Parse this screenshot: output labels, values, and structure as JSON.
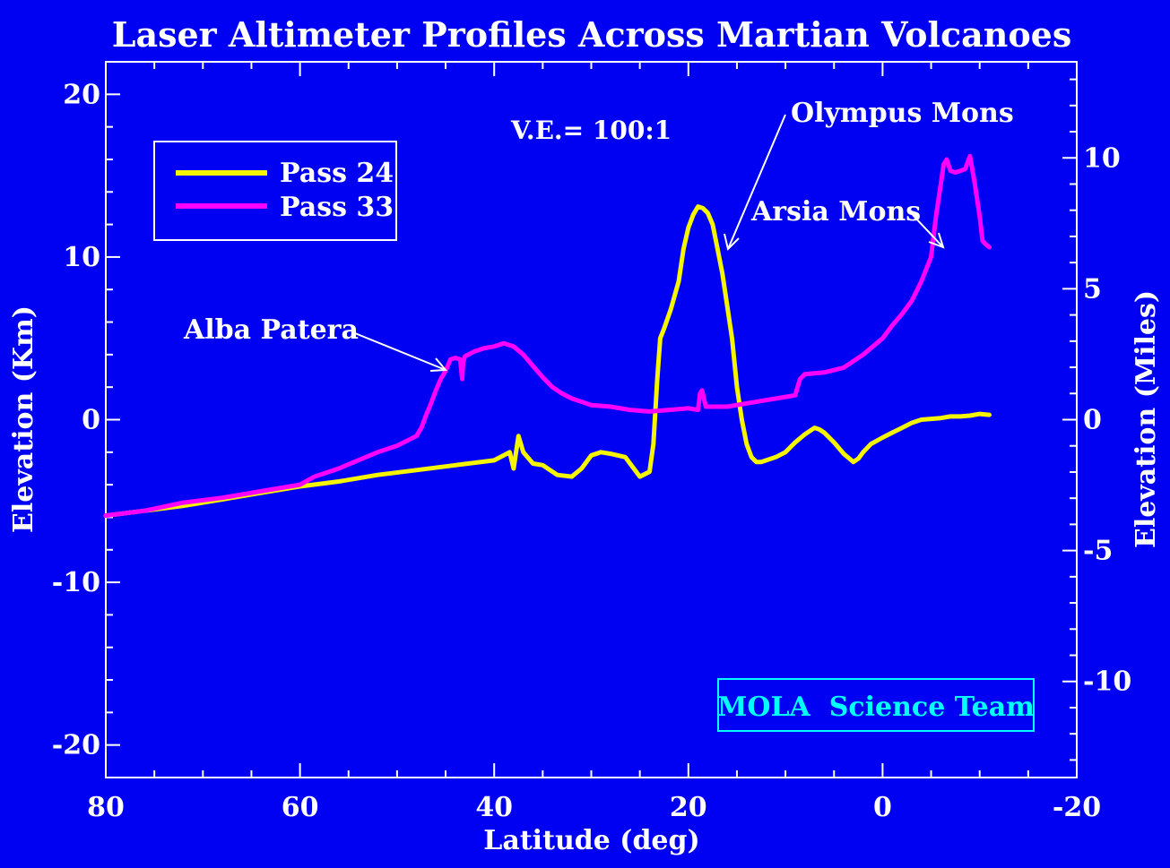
{
  "chart_data": {
    "type": "line",
    "title": "Laser Altimeter Profiles Across Martian Volcanoes",
    "xlabel": "Latitude (deg)",
    "ylabel": "Elevation (Km)",
    "y2label": "Elevation (Miles)",
    "xlim": [
      80,
      -20
    ],
    "ylim": [
      -22,
      22
    ],
    "y2lim": [
      -13.67,
      13.67
    ],
    "xticks": [
      80,
      60,
      40,
      20,
      0,
      -20
    ],
    "yticks": [
      20,
      10,
      0,
      -10,
      -20
    ],
    "y2ticks": [
      10,
      5,
      0,
      -5,
      -10
    ],
    "annotation_ve": "V.E.= 100:1",
    "credit": "MOLA  Science Team",
    "background": "#0000f2",
    "legend_position": "upper-left",
    "series": [
      {
        "name": "Pass 24",
        "color": "#f5f500",
        "x": [
          80,
          76,
          72,
          68,
          64,
          60,
          56,
          52,
          48,
          44,
          40,
          38.4,
          38,
          37.5,
          37,
          36,
          35,
          33.5,
          32,
          31,
          30,
          29,
          28,
          26.5,
          25,
          24,
          23.6,
          23.2,
          22.9,
          22.5,
          21.8,
          21,
          20.5,
          20,
          19.5,
          19,
          18.5,
          18,
          17.5,
          17,
          16.5,
          16,
          15.5,
          15,
          14.5,
          14,
          13.5,
          13,
          12.5,
          11,
          10,
          9,
          8,
          7,
          6.5,
          6,
          5,
          4,
          3,
          2.5,
          2,
          1.2,
          0,
          -1,
          -2,
          -3,
          -4,
          -5,
          -6,
          -7,
          -8,
          -9,
          -10,
          -11
        ],
        "y": [
          -5.9,
          -5.6,
          -5.3,
          -4.9,
          -4.5,
          -4.1,
          -3.8,
          -3.4,
          -3.1,
          -2.8,
          -2.5,
          -2.0,
          -3.0,
          -1.0,
          -2.0,
          -2.7,
          -2.8,
          -3.4,
          -3.5,
          -3.0,
          -2.2,
          -2.0,
          -2.1,
          -2.3,
          -3.5,
          -3.2,
          -1.5,
          2.5,
          5.0,
          5.6,
          6.8,
          8.5,
          10.5,
          11.8,
          12.6,
          13.1,
          13.0,
          12.7,
          12.0,
          10.5,
          9.0,
          7.0,
          5.0,
          2.0,
          0.0,
          -1.5,
          -2.3,
          -2.6,
          -2.6,
          -2.3,
          -2.0,
          -1.4,
          -0.9,
          -0.5,
          -0.6,
          -0.8,
          -1.4,
          -2.1,
          -2.6,
          -2.4,
          -2.0,
          -1.5,
          -1.1,
          -0.8,
          -0.5,
          -0.2,
          0.0,
          0.05,
          0.1,
          0.2,
          0.2,
          0.25,
          0.35,
          0.3
        ]
      },
      {
        "name": "Pass 33",
        "color": "#ff00ff",
        "x": [
          80,
          76,
          72,
          68,
          64,
          60,
          58.5,
          56,
          52,
          50,
          48,
          47.5,
          47,
          46.5,
          46,
          45.5,
          45,
          44.5,
          44,
          43.5,
          43.3,
          43.2,
          43,
          42,
          41,
          40,
          39,
          38,
          37,
          36,
          35,
          34,
          33,
          32,
          31,
          30,
          28,
          26,
          24,
          22,
          20,
          19,
          18.8,
          18.6,
          18.2,
          16,
          14,
          12,
          10,
          9,
          8.5,
          8,
          6,
          4,
          2,
          0,
          -1,
          -2,
          -3,
          -4,
          -5,
          -5.5,
          -6,
          -6.3,
          -6.6,
          -7,
          -7.5,
          -8,
          -8.5,
          -9,
          -9.5,
          -10,
          -10.3,
          -10.6,
          -11
        ],
        "y": [
          -5.9,
          -5.6,
          -5.1,
          -4.8,
          -4.4,
          -4.0,
          -3.5,
          -3.0,
          -2.0,
          -1.6,
          -1.0,
          -0.5,
          0.3,
          1.0,
          1.8,
          2.5,
          3.0,
          3.7,
          3.8,
          3.7,
          2.5,
          3.5,
          3.9,
          4.2,
          4.4,
          4.5,
          4.7,
          4.5,
          4.0,
          3.3,
          2.6,
          2.0,
          1.6,
          1.3,
          1.1,
          0.9,
          0.8,
          0.6,
          0.5,
          0.6,
          0.7,
          0.6,
          1.6,
          1.8,
          0.8,
          0.8,
          1.0,
          1.2,
          1.4,
          1.5,
          2.5,
          2.8,
          2.9,
          3.2,
          4.0,
          5.0,
          5.8,
          6.5,
          7.3,
          8.5,
          10.0,
          12.5,
          14.5,
          15.7,
          16.0,
          15.3,
          15.2,
          15.3,
          15.4,
          16.2,
          14.5,
          12.5,
          11.0,
          10.8,
          10.6
        ]
      }
    ],
    "annotations": [
      {
        "text": "Olympus Mons"
      },
      {
        "text": "Arsia Mons"
      },
      {
        "text": "Alba Patera"
      }
    ]
  }
}
